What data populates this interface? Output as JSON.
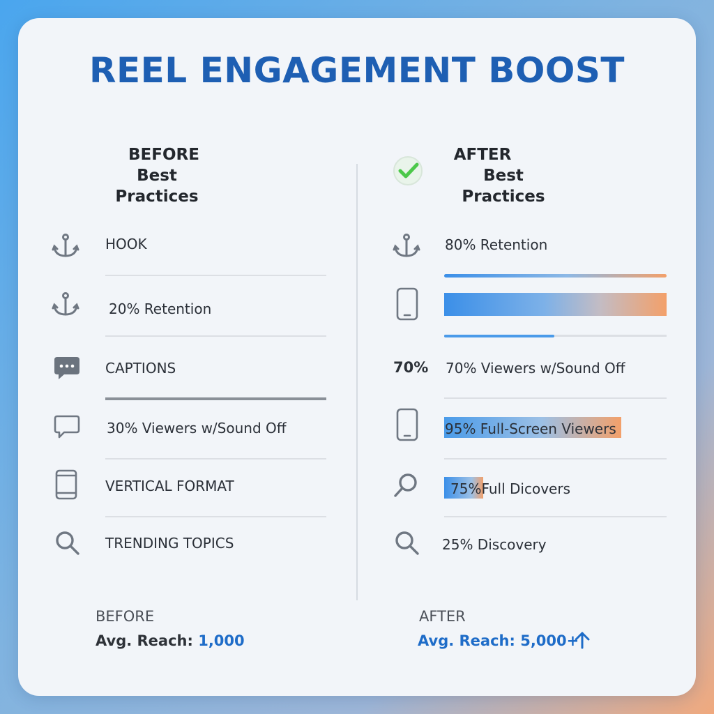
{
  "title": "REEL ENGAGEMENT BOOST",
  "before": {
    "heading_line1": "BEFORE",
    "heading_line2": "Best Practices",
    "rows": [
      {
        "icon": "anchor-icon",
        "label": "HOOK"
      },
      {
        "icon": "anchor-icon",
        "label": "20% Retention"
      },
      {
        "icon": "chat-bubble-filled-icon",
        "label": "CAPTIONS"
      },
      {
        "icon": "chat-bubble-outline-icon",
        "label": "30% Viewers w/Sound Off"
      },
      {
        "icon": "tablet-icon",
        "label": "VERTICAL FORMAT"
      },
      {
        "icon": "magnifier-icon",
        "label": "TRENDING TOPICS"
      }
    ],
    "summary_label": "BEFORE",
    "reach_label": "Avg. Reach:",
    "reach_value": "1,000"
  },
  "after": {
    "heading_line1": "AFTER",
    "heading_line2": "Best Practices",
    "check_icon": "check-circle-icon",
    "rows": [
      {
        "icon": "anchor-icon",
        "label": "80% Retention"
      },
      {
        "icon": "smartphone-icon",
        "label": ""
      },
      {
        "icon": "percent-text-icon",
        "icon_text": "70%",
        "label": "70% Viewers w/Sound Off"
      },
      {
        "icon": "smartphone-icon",
        "label": "95% Full-Screen Viewers"
      },
      {
        "icon": "magnifier-icon",
        "label_pct": "75%",
        "label": "Full Dicovers"
      },
      {
        "icon": "magnifier-icon",
        "label": "25% Discovery"
      }
    ],
    "summary_label": "AFTER",
    "reach_label": "Avg. Reach: 5,000+",
    "reach_arrow": "up-arrow-icon"
  },
  "colors": {
    "title": "#1e5fb3",
    "accent_blue": "#3b8fe8",
    "accent_orange": "#f3a06a",
    "check_green": "#4cc84a"
  }
}
